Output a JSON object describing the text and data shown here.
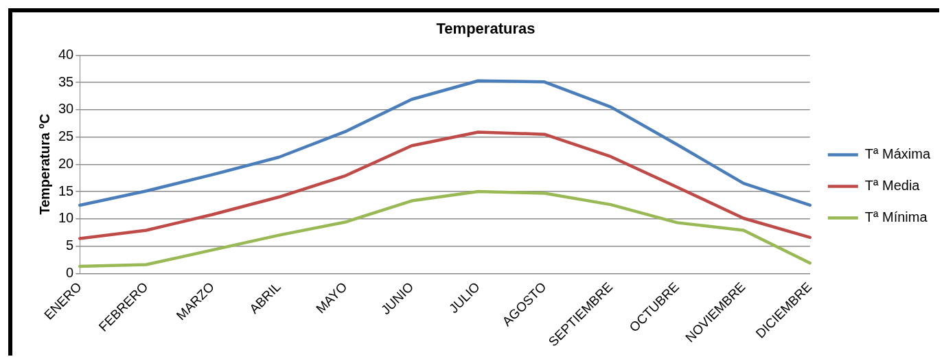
{
  "chart_data": {
    "type": "line",
    "title": "Temperaturas",
    "ylabel": "Temperatura ºC",
    "categories": [
      "ENERO",
      "FEBRERO",
      "MARZO",
      "ABRIL",
      "MAYO",
      "JUNIO",
      "JULIO",
      "AGOSTO",
      "SEPTIEMBRE",
      "OCTUBRE",
      "NOVIEMBRE",
      "DICIEMBRE"
    ],
    "series": [
      {
        "name": "Tª Máxima",
        "color": "#4a7ebb",
        "values": [
          12.5,
          15.1,
          18.1,
          21.3,
          26.0,
          31.9,
          35.3,
          35.1,
          30.5,
          23.6,
          16.5,
          12.5
        ]
      },
      {
        "name": "Tª Media",
        "color": "#be4b48",
        "values": [
          6.4,
          7.9,
          10.8,
          14.0,
          17.9,
          23.4,
          25.9,
          25.5,
          21.4,
          15.8,
          10.1,
          6.6
        ]
      },
      {
        "name": "Tª Mínima",
        "color": "#98b954",
        "values": [
          1.3,
          1.6,
          4.3,
          7.0,
          9.4,
          13.3,
          15.0,
          14.7,
          12.6,
          9.3,
          7.9,
          1.9
        ]
      }
    ],
    "ylim": [
      0,
      40
    ],
    "yticks": [
      0,
      5,
      10,
      15,
      20,
      25,
      30,
      35,
      40
    ],
    "grid": "y",
    "legend": "right",
    "marker": "none",
    "line_style": "solid"
  }
}
